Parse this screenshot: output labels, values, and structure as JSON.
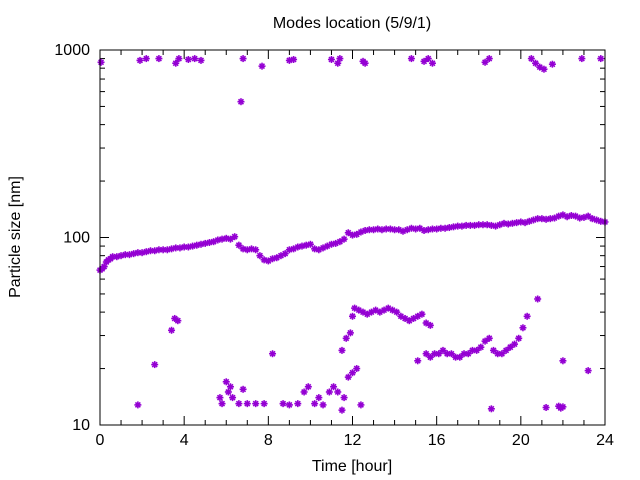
{
  "chart_data": {
    "type": "scatter",
    "title": "Modes location (5/9/1)",
    "xlabel": "Time [hour]",
    "ylabel": "Particle size [nm]",
    "xlim": [
      0,
      24
    ],
    "ylim": [
      10,
      1000
    ],
    "y_scale": "log",
    "x_ticks": [
      0,
      4,
      8,
      12,
      16,
      20,
      24
    ],
    "x_tick_labels": [
      "0",
      "4",
      "8",
      "12",
      "16",
      "20",
      "24"
    ],
    "y_ticks": [
      10,
      100,
      1000
    ],
    "y_tick_labels": [
      "10",
      "100",
      "1000"
    ],
    "grid": false,
    "marker_color": "#9400d3",
    "series": [
      {
        "values": [
          [
            0.05,
            860
          ],
          [
            1.9,
            880
          ],
          [
            2.2,
            900
          ],
          [
            2.8,
            900
          ],
          [
            3.6,
            850
          ],
          [
            3.75,
            900
          ],
          [
            4.2,
            890
          ],
          [
            4.5,
            900
          ],
          [
            4.8,
            880
          ],
          [
            6.8,
            900
          ],
          [
            7.7,
            820
          ],
          [
            9.0,
            880
          ],
          [
            9.2,
            890
          ],
          [
            11.0,
            890
          ],
          [
            11.3,
            850
          ],
          [
            11.4,
            900
          ],
          [
            12.5,
            870
          ],
          [
            12.6,
            850
          ],
          [
            14.8,
            900
          ],
          [
            15.4,
            870
          ],
          [
            15.6,
            900
          ],
          [
            15.8,
            850
          ],
          [
            18.3,
            860
          ],
          [
            18.5,
            900
          ],
          [
            20.5,
            900
          ],
          [
            20.7,
            850
          ],
          [
            20.9,
            810
          ],
          [
            21.1,
            790
          ],
          [
            21.5,
            840
          ],
          [
            22.9,
            900
          ],
          [
            23.8,
            900
          ],
          [
            6.7,
            530
          ],
          [
            0,
            67
          ],
          [
            0.1,
            68
          ],
          [
            0.2,
            70
          ],
          [
            0.3,
            74
          ],
          [
            0.4,
            76
          ],
          [
            0.5,
            77
          ],
          [
            0.6,
            79
          ],
          [
            0.8,
            79
          ],
          [
            1.0,
            80
          ],
          [
            1.2,
            81
          ],
          [
            1.4,
            81
          ],
          [
            1.6,
            82
          ],
          [
            1.8,
            83
          ],
          [
            2.0,
            83
          ],
          [
            2.2,
            84
          ],
          [
            2.4,
            85
          ],
          [
            2.6,
            85
          ],
          [
            2.8,
            86
          ],
          [
            3.0,
            86
          ],
          [
            3.2,
            86
          ],
          [
            3.4,
            87
          ],
          [
            3.6,
            88
          ],
          [
            3.8,
            88
          ],
          [
            4.0,
            89
          ],
          [
            4.2,
            89
          ],
          [
            4.4,
            90
          ],
          [
            4.6,
            91
          ],
          [
            4.8,
            92
          ],
          [
            5.0,
            93
          ],
          [
            5.2,
            94
          ],
          [
            5.4,
            95
          ],
          [
            5.6,
            97
          ],
          [
            5.8,
            98
          ],
          [
            6.0,
            99
          ],
          [
            6.2,
            98
          ],
          [
            6.4,
            101
          ],
          [
            6.6,
            91
          ],
          [
            6.8,
            87
          ],
          [
            7.0,
            86
          ],
          [
            7.2,
            87
          ],
          [
            7.4,
            86
          ],
          [
            7.6,
            80
          ],
          [
            7.8,
            76
          ],
          [
            8.0,
            75
          ],
          [
            8.2,
            77
          ],
          [
            8.4,
            78
          ],
          [
            8.6,
            80
          ],
          [
            8.8,
            82
          ],
          [
            9.0,
            86
          ],
          [
            9.2,
            87
          ],
          [
            9.4,
            89
          ],
          [
            9.6,
            90
          ],
          [
            9.8,
            91
          ],
          [
            10.0,
            92
          ],
          [
            10.2,
            87
          ],
          [
            10.4,
            86
          ],
          [
            10.6,
            88
          ],
          [
            10.8,
            90
          ],
          [
            11.0,
            92
          ],
          [
            11.2,
            93
          ],
          [
            11.4,
            95
          ],
          [
            11.6,
            98
          ],
          [
            11.8,
            106
          ],
          [
            12.0,
            103
          ],
          [
            12.2,
            104
          ],
          [
            12.4,
            107
          ],
          [
            12.6,
            109
          ],
          [
            12.8,
            110
          ],
          [
            13.0,
            110
          ],
          [
            13.2,
            111
          ],
          [
            13.4,
            110
          ],
          [
            13.6,
            111
          ],
          [
            13.8,
            111
          ],
          [
            14.0,
            110
          ],
          [
            14.2,
            110
          ],
          [
            14.4,
            108
          ],
          [
            14.6,
            110
          ],
          [
            14.8,
            112
          ],
          [
            15.0,
            111
          ],
          [
            15.2,
            112
          ],
          [
            15.4,
            109
          ],
          [
            15.6,
            110
          ],
          [
            15.8,
            111
          ],
          [
            16.0,
            111
          ],
          [
            16.2,
            112
          ],
          [
            16.4,
            112
          ],
          [
            16.6,
            113
          ],
          [
            16.8,
            114
          ],
          [
            17.0,
            115
          ],
          [
            17.2,
            115
          ],
          [
            17.4,
            116
          ],
          [
            17.6,
            116
          ],
          [
            17.8,
            116
          ],
          [
            18.0,
            117
          ],
          [
            18.2,
            117
          ],
          [
            18.4,
            117
          ],
          [
            18.6,
            116
          ],
          [
            18.8,
            115
          ],
          [
            19.0,
            117
          ],
          [
            19.2,
            119
          ],
          [
            19.4,
            118
          ],
          [
            19.6,
            119
          ],
          [
            19.8,
            120
          ],
          [
            20.0,
            121
          ],
          [
            20.2,
            120
          ],
          [
            20.4,
            122
          ],
          [
            20.6,
            124
          ],
          [
            20.8,
            126
          ],
          [
            21.0,
            126
          ],
          [
            21.2,
            125
          ],
          [
            21.4,
            126
          ],
          [
            21.6,
            127
          ],
          [
            21.8,
            130
          ],
          [
            22.0,
            132
          ],
          [
            22.2,
            129
          ],
          [
            22.4,
            131
          ],
          [
            22.6,
            130
          ],
          [
            22.8,
            127
          ],
          [
            23.0,
            128
          ],
          [
            23.2,
            130
          ],
          [
            23.4,
            126
          ],
          [
            23.6,
            124
          ],
          [
            23.8,
            122
          ],
          [
            24.0,
            121
          ],
          [
            3.4,
            32
          ],
          [
            3.55,
            37
          ],
          [
            3.7,
            36
          ],
          [
            8.2,
            24
          ],
          [
            11.5,
            25
          ],
          [
            11.7,
            29
          ],
          [
            11.9,
            31
          ],
          [
            12.0,
            38
          ],
          [
            12.1,
            42
          ],
          [
            12.3,
            41
          ],
          [
            12.5,
            40
          ],
          [
            12.7,
            39
          ],
          [
            12.9,
            40
          ],
          [
            13.1,
            41
          ],
          [
            13.3,
            40
          ],
          [
            13.5,
            41
          ],
          [
            13.7,
            42
          ],
          [
            13.9,
            41
          ],
          [
            14.1,
            40
          ],
          [
            14.3,
            38
          ],
          [
            14.5,
            37
          ],
          [
            14.7,
            36
          ],
          [
            14.9,
            37
          ],
          [
            15.1,
            38
          ],
          [
            15.3,
            39
          ],
          [
            15.5,
            35
          ],
          [
            15.7,
            34
          ],
          [
            15.1,
            22
          ],
          [
            15.5,
            24
          ],
          [
            15.7,
            23
          ],
          [
            15.9,
            24
          ],
          [
            16.1,
            24
          ],
          [
            16.3,
            25
          ],
          [
            16.5,
            24
          ],
          [
            16.7,
            24
          ],
          [
            16.9,
            23
          ],
          [
            17.1,
            23
          ],
          [
            17.3,
            24
          ],
          [
            17.5,
            24
          ],
          [
            17.7,
            25
          ],
          [
            17.9,
            25
          ],
          [
            18.1,
            26
          ],
          [
            18.3,
            28
          ],
          [
            18.5,
            29
          ],
          [
            18.7,
            25
          ],
          [
            18.9,
            24
          ],
          [
            19.1,
            24
          ],
          [
            19.3,
            25
          ],
          [
            19.5,
            26
          ],
          [
            19.7,
            27
          ],
          [
            19.9,
            29
          ],
          [
            20.1,
            33
          ],
          [
            20.3,
            38
          ],
          [
            20.8,
            47
          ],
          [
            2.6,
            21
          ],
          [
            22.0,
            22
          ],
          [
            23.2,
            19.5
          ],
          [
            1.8,
            12.8
          ],
          [
            5.7,
            14
          ],
          [
            5.8,
            13
          ],
          [
            6.0,
            17
          ],
          [
            6.1,
            15
          ],
          [
            6.2,
            16
          ],
          [
            6.3,
            14
          ],
          [
            6.6,
            13
          ],
          [
            6.8,
            15.5
          ],
          [
            7.0,
            13
          ],
          [
            7.4,
            13
          ],
          [
            7.8,
            13
          ],
          [
            8.7,
            13
          ],
          [
            9.0,
            12.8
          ],
          [
            9.4,
            13
          ],
          [
            9.7,
            15
          ],
          [
            9.9,
            16
          ],
          [
            10.2,
            13
          ],
          [
            10.4,
            14
          ],
          [
            10.6,
            12.8
          ],
          [
            10.9,
            15
          ],
          [
            11.1,
            16
          ],
          [
            11.3,
            15
          ],
          [
            11.5,
            12
          ],
          [
            11.6,
            14
          ],
          [
            11.8,
            18
          ],
          [
            12.0,
            19
          ],
          [
            12.2,
            20
          ],
          [
            12.4,
            12.8
          ],
          [
            18.6,
            12.2
          ],
          [
            21.2,
            12.4
          ],
          [
            21.8,
            12.6
          ],
          [
            21.9,
            12.3
          ],
          [
            22.0,
            12.5
          ]
        ]
      }
    ]
  }
}
